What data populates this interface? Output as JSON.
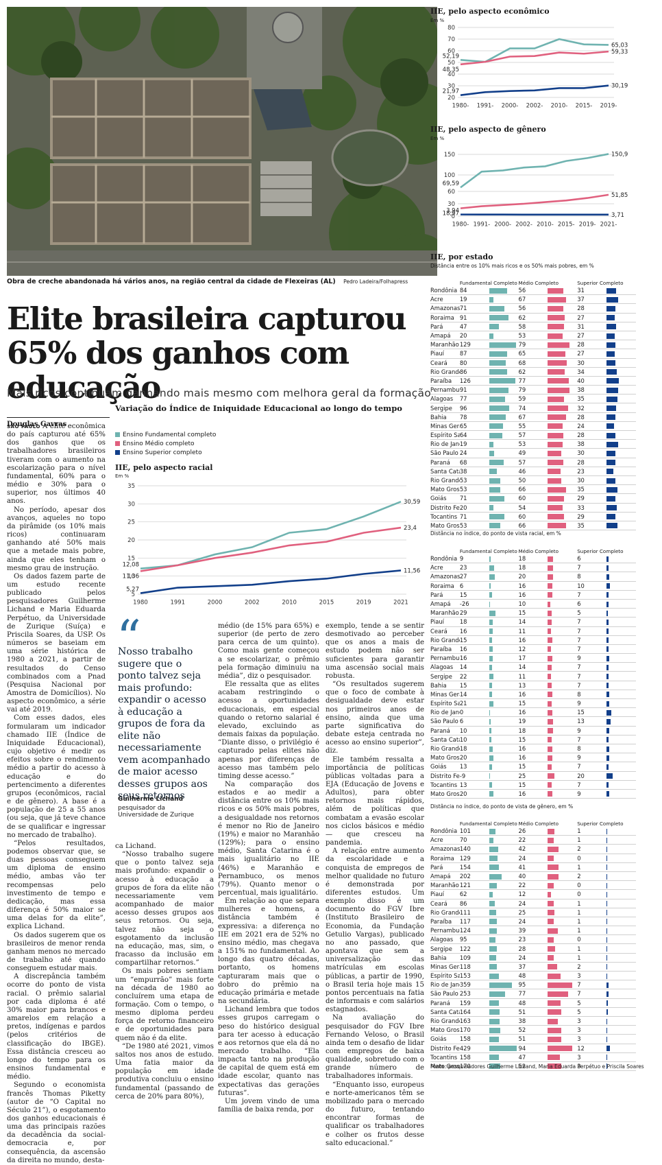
{
  "photo": {
    "caption": "Obra de creche abandonada há vários anos, na região central da cidade de Flexeiras (AL)",
    "credit": "Pedro Ladeira/Folhapress"
  },
  "headline": "Elite brasileira capturou 65% dos ganhos com educação",
  "subhead": "Mais ricos continuam ganhando mais mesmo com melhora geral da formação",
  "byline": "Douglas Gavras",
  "colors": {
    "fundamental": "#6fb3b0",
    "medio": "#e0607e",
    "superior": "#123f8a"
  },
  "main_chart": {
    "title": "Variação do Índice de Iniquidade Educacional ao longo do tempo",
    "legend": [
      "Ensino Fundamental completo",
      "Ensino Médio completo",
      "Ensino Superior completo"
    ]
  },
  "chart_data": [
    {
      "type": "line",
      "title": "IIE, pelo aspecto racial",
      "ylabel": "Em %",
      "x": [
        "1980",
        "1991",
        "2000",
        "2002",
        "2010",
        "2015",
        "2019",
        "2021"
      ],
      "yticks": [
        5,
        10,
        15,
        20,
        25,
        30,
        35
      ],
      "ylim": [
        5,
        35
      ],
      "series": [
        {
          "name": "Ensino Fundamental completo",
          "values": [
            12.08,
            13,
            16,
            18,
            22,
            23,
            26.5,
            30.59
          ],
          "start_label": "12,08",
          "end_label": "30,59"
        },
        {
          "name": "Ensino Médio completo",
          "values": [
            11.36,
            13,
            15,
            16.5,
            18.5,
            19.5,
            22,
            23.4
          ],
          "start_label": "11,36",
          "end_label": "23,4"
        },
        {
          "name": "Ensino Superior completo",
          "values": [
            5.27,
            6.8,
            7.2,
            7.6,
            8.6,
            9.3,
            10.6,
            11.56
          ],
          "start_label": "5,27",
          "end_label": "11,56"
        }
      ]
    },
    {
      "type": "line",
      "title": "IIE, pelo aspecto econômico",
      "ylabel": "Em %",
      "x": [
        "1980-",
        "1991-",
        "2000-",
        "2002-",
        "2010-",
        "2015-",
        "2019-"
      ],
      "yticks": [
        20,
        30,
        40,
        50,
        60,
        70,
        80
      ],
      "ylim": [
        20,
        80
      ],
      "series": [
        {
          "name": "Ensino Fundamental completo",
          "values": [
            52.19,
            50.5,
            62,
            62,
            70,
            65.5,
            65.03
          ],
          "start_label": "52,19",
          "end_label": "65,03"
        },
        {
          "name": "Ensino Médio completo",
          "values": [
            48.35,
            50.5,
            55,
            55.5,
            58.5,
            57.5,
            59.33
          ],
          "start_label": "48,35",
          "end_label": "59,33"
        },
        {
          "name": "Ensino Superior completo",
          "values": [
            21.97,
            24.5,
            25.5,
            26,
            28,
            28,
            30.19
          ],
          "start_label": "21,97",
          "end_label": "30,19"
        }
      ]
    },
    {
      "type": "line",
      "title": "IIE, pelo aspecto de gênero",
      "ylabel": "Em %",
      "x": [
        "1980-",
        "1991-",
        "2000-",
        "2002-",
        "2010-",
        "2015-",
        "2019-",
        "2021-"
      ],
      "yticks": [
        0,
        30,
        60,
        100,
        150
      ],
      "ylim": [
        0,
        160
      ],
      "series": [
        {
          "name": "Ensino Fundamental completo",
          "values": [
            69.59,
            108,
            111,
            118,
            121,
            134,
            141,
            150.9
          ],
          "start_label": "69,59",
          "end_label": "150,9"
        },
        {
          "name": "Ensino Médio completo",
          "values": [
            18.97,
            24,
            27,
            30,
            34,
            38,
            44,
            51.85
          ],
          "start_label": "18,97",
          "end_label": "51,85"
        },
        {
          "name": "Ensino Superior completo",
          "values": [
            3.94,
            3.8,
            3.8,
            3.7,
            3.7,
            3.7,
            3.7,
            3.71
          ],
          "start_label": "3,94",
          "end_label": "3,71"
        }
      ]
    },
    {
      "type": "table",
      "title": "IIE, por estado",
      "note": "Distância entre os 10% mais ricos e os 50% mais pobres, em %",
      "headers": [
        "Fundamental Completo",
        "Médio Completo",
        "Superior Completo"
      ],
      "max": [
        130,
        90,
        45
      ],
      "rows": [
        [
          "Rondônia",
          84,
          56,
          31
        ],
        [
          "Acre",
          19,
          67,
          37
        ],
        [
          "Amazonas",
          71,
          56,
          28
        ],
        [
          "Roraima",
          91,
          62,
          27
        ],
        [
          "Pará",
          47,
          58,
          31
        ],
        [
          "Amapá",
          20,
          53,
          27
        ],
        [
          "Maranhão",
          129,
          79,
          28
        ],
        [
          "Piauí",
          87,
          65,
          27
        ],
        [
          "Ceará",
          80,
          68,
          30
        ],
        [
          "Rio Grande do Norte",
          86,
          62,
          34
        ],
        [
          "Paraíba",
          126,
          77,
          40
        ],
        [
          "Pernambuco",
          91,
          79,
          38
        ],
        [
          "Alagoas",
          77,
          59,
          35
        ],
        [
          "Sergipe",
          96,
          74,
          32
        ],
        [
          "Bahia",
          78,
          67,
          28
        ],
        [
          "Minas Gerais",
          65,
          55,
          24
        ],
        [
          "Espírito Santo",
          64,
          57,
          28
        ],
        [
          "Rio de Janeiro",
          19,
          53,
          38
        ],
        [
          "São Paulo",
          24,
          49,
          30
        ],
        [
          "Paraná",
          68,
          57,
          28
        ],
        [
          "Santa Catarina",
          38,
          46,
          23
        ],
        [
          "Rio Grande do Sul",
          53,
          50,
          30
        ],
        [
          "Mato Grosso",
          53,
          66,
          35
        ],
        [
          "Goiás",
          71,
          60,
          29
        ],
        [
          "Distrito Federal",
          20,
          54,
          33
        ],
        [
          "Tocantins",
          71,
          60,
          29
        ],
        [
          "Mato Grosso do Sul",
          53,
          66,
          35
        ]
      ]
    },
    {
      "type": "table",
      "title": "",
      "note": "Distância no índice, do ponto de vista racial, em %",
      "headers": [
        "Fundamental Completo",
        "Médio Completo",
        "Superior Completo"
      ],
      "max": [
        130,
        90,
        45
      ],
      "rows": [
        [
          "Rondônia",
          9,
          18,
          6
        ],
        [
          "Acre",
          23,
          18,
          7
        ],
        [
          "Amazonas",
          27,
          20,
          8
        ],
        [
          "Roraima",
          6,
          16,
          10
        ],
        [
          "Pará",
          15,
          16,
          7
        ],
        [
          "Amapá",
          -26,
          10,
          6
        ],
        [
          "Maranhão",
          29,
          15,
          5
        ],
        [
          "Piauí",
          18,
          14,
          7
        ],
        [
          "Ceará",
          16,
          11,
          7
        ],
        [
          "Rio Grande do Norte",
          15,
          16,
          7
        ],
        [
          "Paraíba",
          16,
          12,
          7
        ],
        [
          "Pernambuco",
          16,
          17,
          9
        ],
        [
          "Alagoas",
          14,
          14,
          7
        ],
        [
          "Sergipe",
          22,
          11,
          7
        ],
        [
          "Bahia",
          15,
          13,
          7
        ],
        [
          "Minas Gerais",
          14,
          16,
          8
        ],
        [
          "Espírito Santo",
          21,
          15,
          9
        ],
        [
          "Rio de Janeiro",
          0,
          16,
          15
        ],
        [
          "São Paulo",
          6,
          19,
          13
        ],
        [
          "Paraná",
          10,
          18,
          9
        ],
        [
          "Santa Catarina",
          10,
          15,
          7
        ],
        [
          "Rio Grande do Sul",
          18,
          16,
          8
        ],
        [
          "Mato Grosso",
          20,
          16,
          9
        ],
        [
          "Goiás",
          13,
          15,
          7
        ],
        [
          "Distrito Federal",
          -9,
          25,
          20
        ],
        [
          "Tocantins",
          13,
          15,
          7
        ],
        [
          "Mato Grosso do Sul",
          20,
          16,
          9
        ]
      ]
    },
    {
      "type": "table",
      "title": "",
      "note": "Distância no índice, do ponto de vista de gênero, em %",
      "headers": [
        "Fundamental Completo",
        "Médio Completo",
        "Superior Completo"
      ],
      "max": [
        430,
        95,
        45
      ],
      "rows": [
        [
          "Rondônia",
          101,
          26,
          1
        ],
        [
          "Acre",
          70,
          22,
          1
        ],
        [
          "Amazonas",
          140,
          42,
          2
        ],
        [
          "Roraima",
          129,
          24,
          0
        ],
        [
          "Pará",
          154,
          41,
          1
        ],
        [
          "Amapá",
          202,
          40,
          2
        ],
        [
          "Maranhão",
          121,
          22,
          0
        ],
        [
          "Piauí",
          62,
          12,
          0
        ],
        [
          "Ceará",
          86,
          24,
          1
        ],
        [
          "Rio Grande do Norte",
          111,
          25,
          1
        ],
        [
          "Paraíba",
          117,
          24,
          1
        ],
        [
          "Pernambuco",
          124,
          39,
          1
        ],
        [
          "Alagoas",
          95,
          23,
          0
        ],
        [
          "Sergipe",
          122,
          28,
          1
        ],
        [
          "Bahia",
          109,
          24,
          1
        ],
        [
          "Minas Gerais",
          118,
          37,
          2
        ],
        [
          "Espírito Santo",
          153,
          48,
          3
        ],
        [
          "Rio de Janeiro",
          359,
          95,
          7
        ],
        [
          "São Paulo",
          253,
          77,
          7
        ],
        [
          "Paraná",
          159,
          48,
          5
        ],
        [
          "Santa Catarina",
          164,
          51,
          5
        ],
        [
          "Rio Grande do Sul",
          163,
          38,
          3
        ],
        [
          "Mato Grosso",
          170,
          52,
          3
        ],
        [
          "Goiás",
          158,
          51,
          3
        ],
        [
          "Distrito Federal",
          429,
          94,
          12
        ],
        [
          "Tocantins",
          158,
          47,
          3
        ],
        [
          "Mato Grosso do Sul",
          170,
          52,
          3
        ]
      ]
    }
  ],
  "quote": {
    "text": "Nosso trabalho sugere que o ponto talvez seja mais profundo: expandir o acesso à educação a grupos de fora da elite não necessariamente vem acompanhado de maior acesso desses grupos aos seus retornos",
    "author": "Guilherme Lichand",
    "role": "pesquisador da Universidade de Zurique"
  },
  "article": {
    "dateline": "SÃO PAULO",
    "col1": [
      "A elite econômica do país capturou até 65% dos ganhos que os trabalhadores brasileiros tiveram com o aumento na escolarização para o nível fundamental, 60% para o médio e 30% para o superior, nos últimos 40 anos.",
      "No período, apesar dos avanços, aqueles no topo da pirâmide (os 10% mais ricos) continuaram ganhando até 50% mais que a metade mais pobre, ainda que eles tenham o mesmo grau de instrução.",
      "Os dados fazem parte de um estudo recente publicado pelos pesquisadores Guilherme Lichand e Maria Eduarda Perpétuo, da Universidade de Zurique (Suíça) e Priscila Soares, da USP. Os números se baseiam em uma série histórica de 1980 a 2021, a partir de resultados do Censo combinados com a Pnad (Pesquisa Nacional por Amostra de Domicílios). No aspecto econômico, a série vai até 2019.",
      "Com esses dados, eles formularam um indicador chamado IIE (Índice de Iniquidade Educacional), cujo objetivo é medir os efeitos sobre o rendimento médio a partir do acesso à educação e do pertencimento a diferentes grupos (econômicos, racial e de gênero). A base é a população de 25 a 55 anos (ou seja, que já teve chance de se qualificar e ingressar no mercado de trabalho).",
      "“Pelos resultados, podemos observar que, se duas pessoas conseguem um diploma de ensino médio, ambas vão ter recompensas pelo investimento de tempo e dedicação, mas essa diferença é 50% maior se uma delas for da elite”, explica Lichand.",
      "Os dados sugerem que os brasileiros de menor renda ganham menos no mercado de trabalho até quando conseguem estudar mais.",
      "A discrepância também ocorre do ponto de vista racial. O prêmio salarial por cada diploma é até 30% maior para brancos e amarelos em relação a pretos, indígenas e pardos (pelos critérios de classificação do IBGE). Essa distância cresceu ao longo do tempo para os ensinos fundamental e médio.",
      "Segundo o economista francês Thomas Piketty (autor de “O Capital no Século 21”), o esgotamento dos ganhos educacionais é uma das principais razões da decadência da social-democracia e, por consequência, da ascensão da direita no mundo, desta-"
    ],
    "col2": [
      "ca Lichand.",
      "“Nosso trabalho sugere que o ponto talvez seja mais profundo: expandir o acesso à educação a grupos de fora da elite não necessariamente vem acompanhado de maior acesso desses grupos aos seus retornos. Ou seja, talvez não seja o esgotamento da inclusão na educação, mas, sim, o fracasso da inclusão em compartilhar retornos.”",
      "Os mais pobres sentiam um “empurrão” mais forte na década de 1980 ao concluírem uma etapa de formação. Com o tempo, o mesmo diploma perdeu força de retorno financeiro e de oportunidades para quem não é da elite.",
      "“De 1980 até 2021, vimos saltos nos anos de estudo. Uma fatia maior da população em idade produtiva concluiu o ensino fundamental (passando de cerca de 20% para 80%),"
    ],
    "col3": [
      "médio (de 15% para 65%) e superior (de perto de zero para cerca de um quinto). Como mais gente começou a se escolarizar, o prêmio pela formação diminuiu na média”, diz o pesquisador.",
      "Ele ressalta que as elites acabam restringindo o acesso a oportunidades educacionais, em especial quando o retorno salarial é elevado, excluindo as demais faixas da população. “Diante disso, o privilégio é capturado pelas elites não apenas por diferenças de acesso mas também pelo timing desse acesso.”",
      "Na comparação dos estados e ao medir a distância entre os 10% mais ricos e os 50% mais pobres, a desigualdade nos retornos é menor no Rio de Janeiro (19%) e maior no Maranhão (129%); para o ensino médio, Santa Catarina é o mais igualitário no IIE (46%) e Maranhão e Pernambuco, os menos (79%). Quanto menor o percentual, mais igualitário.",
      "Em relação ao que separa mulheres e homens, a distância também é expressiva: a diferença no IIE em 2021 era de 52% no ensino médio, mas chegava a 151% no fundamental. Ao longo das quatro décadas, portanto, os homens capturaram mais que o dobro do prêmio na educação primária e metade na secundária.",
      "Lichand lembra que todos esses grupos carregam o peso do histórico desigual para ter acesso à educação e aos retornos que ela dá no mercado trabalho. “Ela impacta tanto na produção de capital de quem está em idade escolar, quanto nas expectativas das gerações futuras”.",
      "Um jovem vindo de uma família de baixa renda, por"
    ],
    "col4": [
      "exemplo, tende a se sentir desmotivado ao perceber que os anos a mais de estudo podem não ser suficientes para garantir uma ascensão social mais robusta.",
      "“Os resultados sugerem que o foco de combate à desigualdade deve estar nos primeiros anos de ensino, ainda que uma parte significativa do debate esteja centrada no acesso ao ensino superior”, diz.",
      "Ele também ressalta a importância de políticas públicas voltadas para a EJA (Educação de Jovens e Adultos), para obter retornos mais rápidos, além de políticas que combatam a evasão escolar nos ciclos básicos e médio — que cresceu na pandemia.",
      "A relação entre aumento da escolaridade e a conquista de empregos de melhor qualidade no futuro é demonstrada por diferentes estudos. Um exemplo disso é um documento do FGV Ibre (Instituto Brasileiro de Economia, da Fundação Getulio Vargas), publicado no ano passado, que apontava que sem a universalização das matrículas em escolas públicas, a partir de 1990, o Brasil teria hoje mais 15 pontos percentuais na fatia de informais e com salários estagnados.",
      "Na avaliação do pesquisador do FGV Ibre Fernando Veloso, o Brasil ainda tem o desafio de lidar com empregos de baixa qualidade, sobretudo com o grande número de trabalhadores informais.",
      "“Enquanto isso, europeus e norte-americanos têm se mobilizado para o mercado do futuro, tentando encontrar formas de qualificar os trabalhadores e colher os frutos desse salto educacional.”"
    ]
  },
  "footer": "Fonte: pesquisadores Guilherme Lichand, Maria Eduarda Perpétuo e Priscila Soares"
}
